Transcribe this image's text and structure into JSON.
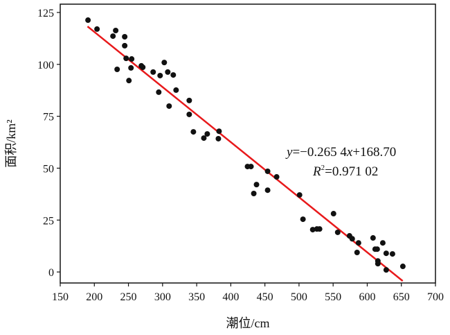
{
  "chart_data": {
    "type": "scatter",
    "title": "",
    "xlabel": "潮位/cm",
    "ylabel": "面积/km²",
    "xlim": [
      150,
      700
    ],
    "ylim": [
      -5.3,
      129
    ],
    "xticks": [
      150,
      200,
      250,
      300,
      350,
      400,
      450,
      500,
      550,
      600,
      650,
      700
    ],
    "yticks": [
      0,
      25,
      50,
      75,
      100,
      125
    ],
    "grid": false,
    "point_color": "#111111",
    "line_color": "#e8191b",
    "points": [
      [
        190.7,
        121.3
      ],
      [
        203.9,
        117.0
      ],
      [
        227.3,
        113.6
      ],
      [
        231.3,
        116.3
      ],
      [
        244.5,
        113.3
      ],
      [
        244.5,
        109.0
      ],
      [
        246.6,
        102.9
      ],
      [
        254.7,
        102.6
      ],
      [
        233.4,
        97.6
      ],
      [
        253.7,
        98.3
      ],
      [
        250.7,
        92.2
      ],
      [
        268.9,
        99.3
      ],
      [
        271.0,
        98.6
      ],
      [
        286.2,
        96.3
      ],
      [
        296.4,
        94.6
      ],
      [
        302.5,
        100.9
      ],
      [
        307.6,
        96.3
      ],
      [
        315.7,
        94.9
      ],
      [
        294.4,
        86.6
      ],
      [
        319.8,
        87.6
      ],
      [
        309.6,
        79.9
      ],
      [
        339.1,
        82.6
      ],
      [
        339.1,
        75.9
      ],
      [
        345.2,
        67.5
      ],
      [
        360.5,
        64.5
      ],
      [
        365.5,
        66.5
      ],
      [
        382.8,
        67.8
      ],
      [
        381.8,
        64.2
      ],
      [
        424.5,
        50.8
      ],
      [
        429.6,
        50.8
      ],
      [
        433.7,
        37.8
      ],
      [
        437.7,
        42.1
      ],
      [
        454.0,
        48.5
      ],
      [
        454.0,
        39.4
      ],
      [
        467.2,
        45.8
      ],
      [
        500.8,
        37.1
      ],
      [
        505.8,
        25.4
      ],
      [
        520.1,
        20.4
      ],
      [
        526.2,
        20.7
      ],
      [
        530.2,
        20.7
      ],
      [
        550.6,
        28.1
      ],
      [
        556.7,
        19.1
      ],
      [
        574.0,
        17.4
      ],
      [
        578.0,
        16.0
      ],
      [
        587.2,
        14.0
      ],
      [
        585.1,
        9.4
      ],
      [
        608.5,
        16.4
      ],
      [
        611.6,
        11.0
      ],
      [
        614.6,
        11.0
      ],
      [
        622.8,
        14.0
      ],
      [
        615.6,
        4.0
      ],
      [
        615.6,
        5.3
      ],
      [
        627.8,
        9.0
      ],
      [
        637.0,
        8.7
      ],
      [
        627.8,
        1.0
      ],
      [
        652.2,
        2.7
      ]
    ],
    "regression": {
      "slope": -0.2654,
      "intercept": 168.7,
      "x_range": [
        190,
        652
      ]
    },
    "annotations": {
      "equation": {
        "y": "y",
        "eq": "=−0.265 4",
        "x": "x",
        "rest": "+168.70"
      },
      "r2": {
        "r": "R",
        "sup": "2",
        "rest": "=0.971 02"
      }
    }
  }
}
